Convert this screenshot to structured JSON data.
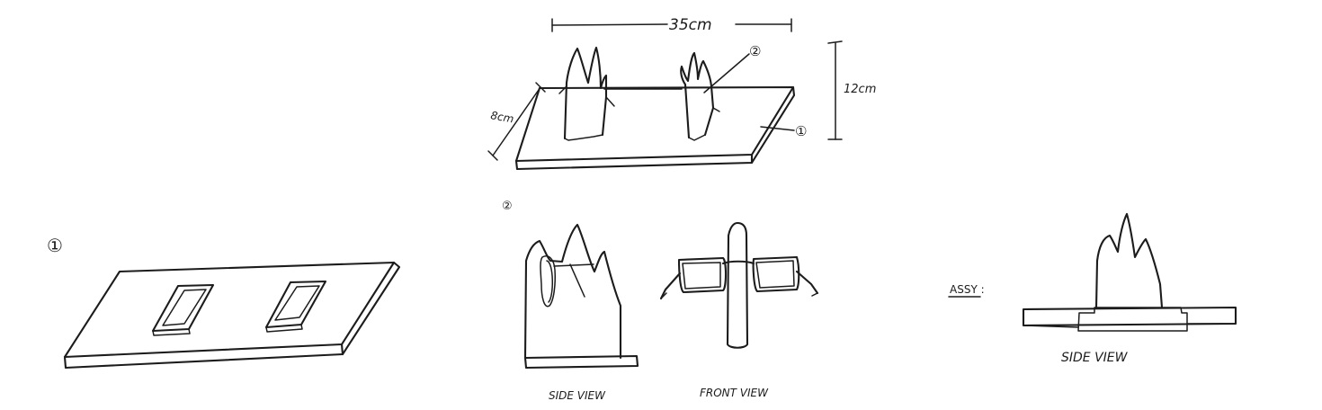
{
  "overview": {
    "dim_width": "35cm",
    "dim_depth": "8cm",
    "dim_height": "12cm",
    "callout_holder": "②",
    "callout_base": "①"
  },
  "base_detail": {
    "number": "①"
  },
  "holder_detail": {
    "number": "②",
    "side_view_label": "SIDE VIEW",
    "front_view_label": "FRONT VIEW"
  },
  "assembly": {
    "label": "ASSY :",
    "view_label": "SIDE VIEW"
  }
}
